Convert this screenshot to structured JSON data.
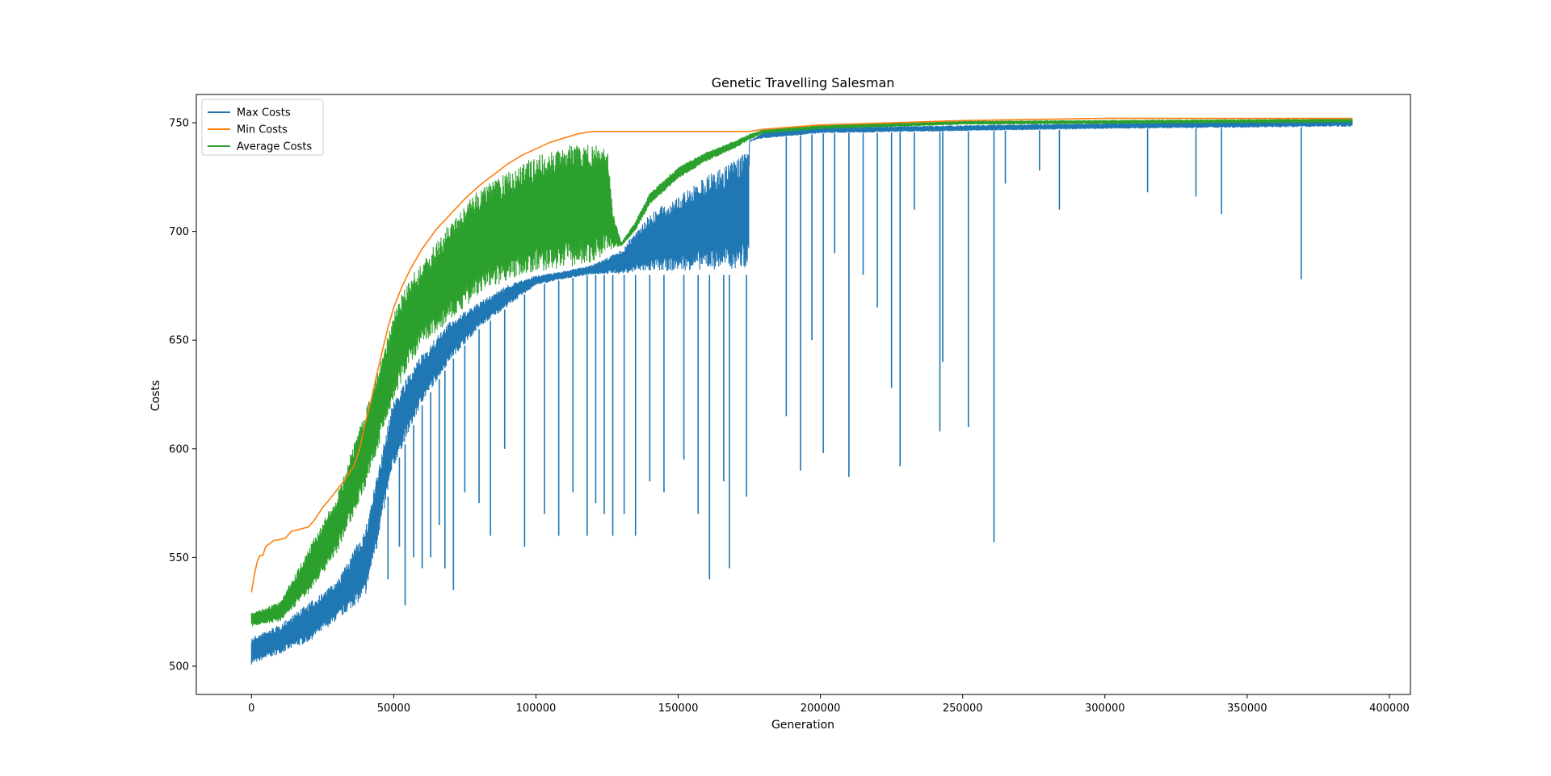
{
  "chart_data": {
    "type": "line",
    "title": "Genetic Travelling Salesman",
    "xlabel": "Generation",
    "ylabel": "Costs",
    "xlim": [
      -19400,
      407400
    ],
    "ylim": [
      487,
      763
    ],
    "xticks": [
      0,
      50000,
      100000,
      150000,
      200000,
      250000,
      300000,
      350000,
      400000
    ],
    "xtick_labels": [
      "0",
      "50000",
      "100000",
      "150000",
      "200000",
      "250000",
      "300000",
      "350000",
      "400000"
    ],
    "yticks": [
      500,
      550,
      600,
      650,
      700,
      750
    ],
    "ytick_labels": [
      "500",
      "550",
      "600",
      "650",
      "700",
      "750"
    ],
    "grid": false,
    "legend_position": "top-left",
    "series": [
      {
        "name": "Max Costs",
        "color": "#1f77b4",
        "style": "noisy-band",
        "band_upper": [
          [
            0,
            514
          ],
          [
            10000,
            520
          ],
          [
            20000,
            530
          ],
          [
            30000,
            540
          ],
          [
            40000,
            565
          ],
          [
            50000,
            625
          ],
          [
            60000,
            645
          ],
          [
            70000,
            660
          ],
          [
            80000,
            668
          ],
          [
            90000,
            676
          ],
          [
            100000,
            680
          ],
          [
            110000,
            682
          ],
          [
            120000,
            685
          ],
          [
            130000,
            692
          ],
          [
            140000,
            710
          ],
          [
            150000,
            718
          ],
          [
            160000,
            728
          ],
          [
            170000,
            736
          ],
          [
            175000,
            741
          ],
          [
            180000,
            746
          ],
          [
            200000,
            748
          ],
          [
            250000,
            749
          ],
          [
            300000,
            750
          ],
          [
            387000,
            752
          ]
        ],
        "band_lower": [
          [
            0,
            500
          ],
          [
            10000,
            505
          ],
          [
            20000,
            510
          ],
          [
            30000,
            520
          ],
          [
            40000,
            530
          ],
          [
            50000,
            590
          ],
          [
            60000,
            620
          ],
          [
            70000,
            640
          ],
          [
            80000,
            655
          ],
          [
            90000,
            665
          ],
          [
            100000,
            675
          ],
          [
            110000,
            678
          ],
          [
            120000,
            680
          ],
          [
            150000,
            680
          ],
          [
            174900,
            680
          ],
          [
            175000,
            742
          ],
          [
            200000,
            745
          ],
          [
            250000,
            746
          ],
          [
            300000,
            747
          ],
          [
            387000,
            748
          ]
        ],
        "spikes": [
          [
            44000,
            560
          ],
          [
            48000,
            540
          ],
          [
            52000,
            555
          ],
          [
            54000,
            528
          ],
          [
            57000,
            550
          ],
          [
            60000,
            545
          ],
          [
            63000,
            550
          ],
          [
            66000,
            565
          ],
          [
            68000,
            545
          ],
          [
            71000,
            535
          ],
          [
            75000,
            580
          ],
          [
            80000,
            575
          ],
          [
            84000,
            560
          ],
          [
            89000,
            600
          ],
          [
            96000,
            555
          ],
          [
            103000,
            570
          ],
          [
            108000,
            560
          ],
          [
            113000,
            580
          ],
          [
            118000,
            560
          ],
          [
            121000,
            575
          ],
          [
            124000,
            570
          ],
          [
            127000,
            560
          ],
          [
            131000,
            570
          ],
          [
            135000,
            560
          ],
          [
            140000,
            585
          ],
          [
            145000,
            580
          ],
          [
            152000,
            595
          ],
          [
            157000,
            570
          ],
          [
            161000,
            540
          ],
          [
            166000,
            585
          ],
          [
            168000,
            545
          ],
          [
            174000,
            578
          ],
          [
            188000,
            615
          ],
          [
            193000,
            590
          ],
          [
            197000,
            650
          ],
          [
            201000,
            598
          ],
          [
            205000,
            690
          ],
          [
            210000,
            587
          ],
          [
            215000,
            680
          ],
          [
            220000,
            665
          ],
          [
            225000,
            628
          ],
          [
            228000,
            592
          ],
          [
            233000,
            710
          ],
          [
            242000,
            608
          ],
          [
            243000,
            640
          ],
          [
            252000,
            610
          ],
          [
            261000,
            557
          ],
          [
            265000,
            722
          ],
          [
            277000,
            728
          ],
          [
            284000,
            710
          ],
          [
            315000,
            718
          ],
          [
            332000,
            716
          ],
          [
            341000,
            708
          ],
          [
            369000,
            678
          ]
        ]
      },
      {
        "name": "Min Costs",
        "color": "#ff7f0e",
        "style": "line",
        "points": [
          [
            0,
            534
          ],
          [
            1000,
            542
          ],
          [
            2000,
            548
          ],
          [
            3000,
            551
          ],
          [
            4000,
            551
          ],
          [
            5000,
            555
          ],
          [
            6000,
            556
          ],
          [
            7000,
            557
          ],
          [
            8000,
            558
          ],
          [
            9000,
            558
          ],
          [
            12000,
            559
          ],
          [
            14000,
            562
          ],
          [
            20000,
            564
          ],
          [
            22000,
            567
          ],
          [
            25000,
            573
          ],
          [
            27000,
            576
          ],
          [
            30000,
            581
          ],
          [
            33000,
            586
          ],
          [
            36000,
            592
          ],
          [
            38000,
            600
          ],
          [
            40000,
            612
          ],
          [
            42000,
            622
          ],
          [
            44000,
            634
          ],
          [
            46000,
            645
          ],
          [
            48000,
            656
          ],
          [
            50000,
            665
          ],
          [
            53000,
            675
          ],
          [
            56000,
            683
          ],
          [
            60000,
            692
          ],
          [
            65000,
            701
          ],
          [
            70000,
            708
          ],
          [
            75000,
            715
          ],
          [
            80000,
            721
          ],
          [
            85000,
            726
          ],
          [
            90000,
            731
          ],
          [
            95000,
            735
          ],
          [
            100000,
            738
          ],
          [
            105000,
            741
          ],
          [
            110000,
            743
          ],
          [
            115000,
            745
          ],
          [
            120000,
            746
          ],
          [
            150000,
            746
          ],
          [
            175000,
            746
          ],
          [
            180000,
            747
          ],
          [
            200000,
            749
          ],
          [
            250000,
            751
          ],
          [
            300000,
            752
          ],
          [
            387000,
            752
          ]
        ]
      },
      {
        "name": "Average Costs",
        "color": "#2ca02c",
        "style": "noisy-band",
        "band_upper": [
          [
            0,
            525
          ],
          [
            10000,
            530
          ],
          [
            20000,
            555
          ],
          [
            30000,
            580
          ],
          [
            40000,
            620
          ],
          [
            45000,
            640
          ],
          [
            50000,
            665
          ],
          [
            55000,
            680
          ],
          [
            60000,
            688
          ],
          [
            70000,
            708
          ],
          [
            80000,
            722
          ],
          [
            90000,
            730
          ],
          [
            100000,
            738
          ],
          [
            110000,
            742
          ],
          [
            115000,
            744
          ],
          [
            120000,
            745
          ],
          [
            123000,
            744
          ],
          [
            125000,
            742
          ],
          [
            127000,
            710
          ],
          [
            130000,
            695
          ],
          [
            135000,
            705
          ],
          [
            140000,
            718
          ],
          [
            150000,
            730
          ],
          [
            160000,
            737
          ],
          [
            170000,
            742
          ],
          [
            175000,
            745
          ],
          [
            180000,
            747
          ],
          [
            200000,
            749
          ],
          [
            250000,
            751
          ],
          [
            387000,
            752
          ]
        ],
        "band_lower": [
          [
            0,
            518
          ],
          [
            10000,
            520
          ],
          [
            20000,
            532
          ],
          [
            30000,
            550
          ],
          [
            40000,
            580
          ],
          [
            45000,
            600
          ],
          [
            50000,
            620
          ],
          [
            55000,
            635
          ],
          [
            60000,
            645
          ],
          [
            70000,
            656
          ],
          [
            80000,
            668
          ],
          [
            90000,
            675
          ],
          [
            100000,
            678
          ],
          [
            110000,
            680
          ],
          [
            120000,
            682
          ],
          [
            125000,
            688
          ],
          [
            128000,
            692
          ],
          [
            130000,
            693
          ],
          [
            135000,
            700
          ],
          [
            140000,
            712
          ],
          [
            150000,
            724
          ],
          [
            160000,
            732
          ],
          [
            170000,
            738
          ],
          [
            175000,
            742
          ],
          [
            180000,
            745
          ],
          [
            200000,
            747
          ],
          [
            250000,
            749
          ],
          [
            387000,
            750
          ]
        ],
        "spikes": []
      }
    ]
  }
}
